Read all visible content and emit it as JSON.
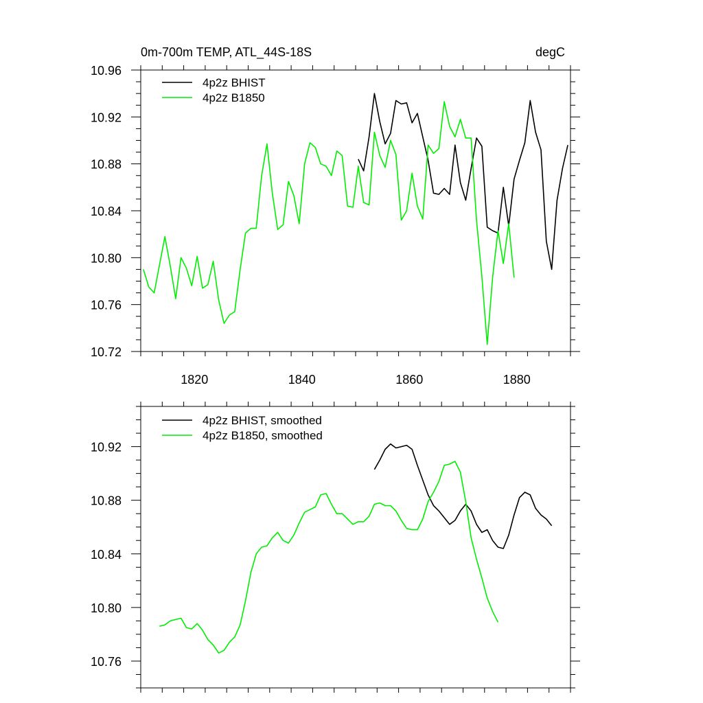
{
  "colors": {
    "bhist": "#000000",
    "b1850": "#00ee00",
    "axis": "#000000"
  },
  "chart_data": [
    {
      "type": "line",
      "title": "0m-700m TEMP, ATL_44S-18S",
      "units": "degC",
      "xlim": [
        1810,
        1890
      ],
      "ylim": [
        10.72,
        10.96
      ],
      "xticks": [
        1820,
        1840,
        1860,
        1880
      ],
      "xtick_labels": [
        "1820",
        "1840",
        "1860",
        "1880"
      ],
      "yticks": [
        10.72,
        10.76,
        10.8,
        10.84,
        10.88,
        10.92,
        10.96
      ],
      "ytick_labels": [
        "10.72",
        "10.76",
        "10.80",
        "10.84",
        "10.88",
        "10.92",
        "10.96"
      ],
      "grid": false,
      "legend_position": "top-left",
      "series": [
        {
          "name": "4p2z BHIST",
          "color_key": "bhist",
          "x": [
            1850.5,
            1851.5,
            1852.5,
            1853.5,
            1854.5,
            1855.5,
            1856.5,
            1857.5,
            1858.5,
            1859.5,
            1860.5,
            1861.5,
            1862.5,
            1863.5,
            1864.5,
            1865.5,
            1866.5,
            1867.5,
            1868.5,
            1869.5,
            1870.5,
            1871.5,
            1872.5,
            1873.5,
            1874.5,
            1875.5,
            1876.5,
            1877.5,
            1878.5,
            1879.5,
            1880.5,
            1881.5,
            1882.5,
            1883.5,
            1884.5,
            1885.5,
            1886.5,
            1887.5,
            1888.5,
            1889.5
          ],
          "y": [
            10.884,
            10.874,
            10.903,
            10.94,
            10.916,
            10.897,
            10.906,
            10.934,
            10.931,
            10.932,
            10.915,
            10.923,
            10.903,
            10.883,
            10.855,
            10.854,
            10.859,
            10.854,
            10.896,
            10.864,
            10.849,
            10.876,
            10.902,
            10.895,
            10.826,
            10.823,
            10.821,
            10.86,
            10.827,
            10.867,
            10.883,
            10.898,
            10.934,
            10.907,
            10.892,
            10.814,
            10.79,
            10.849,
            10.876,
            10.896
          ]
        },
        {
          "name": "4p2z B1850",
          "color_key": "b1850",
          "x": [
            1810.5,
            1811.5,
            1812.5,
            1813.5,
            1814.5,
            1815.5,
            1816.5,
            1817.5,
            1818.5,
            1819.5,
            1820.5,
            1821.5,
            1822.5,
            1823.5,
            1824.5,
            1825.5,
            1826.5,
            1827.5,
            1828.5,
            1829.5,
            1830.5,
            1831.5,
            1832.5,
            1833.5,
            1834.5,
            1835.5,
            1836.5,
            1837.5,
            1838.5,
            1839.5,
            1840.5,
            1841.5,
            1842.5,
            1843.5,
            1844.5,
            1845.5,
            1846.5,
            1847.5,
            1848.5,
            1849.5,
            1850.5,
            1851.5,
            1852.5,
            1853.5,
            1854.5,
            1855.5,
            1856.5,
            1857.5,
            1858.5,
            1859.5,
            1860.5,
            1861.5,
            1862.5,
            1863.5,
            1864.5,
            1865.5,
            1866.5,
            1867.5,
            1868.5,
            1869.5,
            1870.5,
            1871.5,
            1872.5,
            1873.5,
            1874.5,
            1875.5,
            1876.5,
            1877.5,
            1878.5,
            1879.5
          ],
          "y": [
            10.79,
            10.775,
            10.77,
            10.794,
            10.818,
            10.793,
            10.765,
            10.8,
            10.791,
            10.776,
            10.801,
            10.774,
            10.777,
            10.797,
            10.764,
            10.744,
            10.751,
            10.754,
            10.79,
            10.821,
            10.825,
            10.825,
            10.87,
            10.897,
            10.855,
            10.824,
            10.828,
            10.865,
            10.853,
            10.829,
            10.88,
            10.898,
            10.894,
            10.88,
            10.878,
            10.87,
            10.891,
            10.887,
            10.844,
            10.843,
            10.878,
            10.847,
            10.845,
            10.907,
            10.887,
            10.877,
            10.9,
            10.888,
            10.832,
            10.84,
            10.872,
            10.844,
            10.833,
            10.896,
            10.889,
            10.893,
            10.933,
            10.912,
            10.903,
            10.918,
            10.902,
            10.902,
            10.832,
            10.784,
            10.726,
            10.783,
            10.823,
            10.795,
            10.829,
            10.783
          ]
        }
      ]
    },
    {
      "type": "line",
      "xlim": [
        1810,
        1890
      ],
      "ylim": [
        10.74,
        10.95
      ],
      "xticks": [
        1820,
        1840,
        1860,
        1880
      ],
      "yticks": [
        10.76,
        10.8,
        10.84,
        10.88,
        10.92
      ],
      "ytick_labels": [
        "10.76",
        "10.80",
        "10.84",
        "10.88",
        "10.92"
      ],
      "grid": false,
      "legend_position": "top-left",
      "series": [
        {
          "name": "4p2z BHIST, smoothed",
          "color_key": "bhist",
          "x": [
            1853.5,
            1854.5,
            1855.5,
            1856.5,
            1857.5,
            1858.5,
            1859.5,
            1860.5,
            1861.5,
            1862.5,
            1863.5,
            1864.5,
            1865.5,
            1866.5,
            1867.5,
            1868.5,
            1869.5,
            1870.5,
            1871.5,
            1872.5,
            1873.5,
            1874.5,
            1875.5,
            1876.5,
            1877.5,
            1878.5,
            1879.5,
            1880.5,
            1881.5,
            1882.5,
            1883.5,
            1884.5,
            1885.5,
            1886.5
          ],
          "y": [
            10.903,
            10.91,
            10.918,
            10.922,
            10.919,
            10.92,
            10.921,
            10.918,
            10.906,
            10.895,
            10.884,
            10.876,
            10.872,
            10.867,
            10.862,
            10.865,
            10.872,
            10.877,
            10.872,
            10.862,
            10.856,
            10.858,
            10.85,
            10.845,
            10.844,
            10.854,
            10.869,
            10.882,
            10.886,
            10.884,
            10.874,
            10.869,
            10.866,
            10.861
          ]
        },
        {
          "name": "4p2z B1850, smoothed",
          "color_key": "b1850",
          "x": [
            1813.5,
            1814.5,
            1815.5,
            1816.5,
            1817.5,
            1818.5,
            1819.5,
            1820.5,
            1821.5,
            1822.5,
            1823.5,
            1824.5,
            1825.5,
            1826.5,
            1827.5,
            1828.5,
            1829.5,
            1830.5,
            1831.5,
            1832.5,
            1833.5,
            1834.5,
            1835.5,
            1836.5,
            1837.5,
            1838.5,
            1839.5,
            1840.5,
            1841.5,
            1842.5,
            1843.5,
            1844.5,
            1845.5,
            1846.5,
            1847.5,
            1848.5,
            1849.5,
            1850.5,
            1851.5,
            1852.5,
            1853.5,
            1854.5,
            1855.5,
            1856.5,
            1857.5,
            1858.5,
            1859.5,
            1860.5,
            1861.5,
            1862.5,
            1863.5,
            1864.5,
            1865.5,
            1866.5,
            1867.5,
            1868.5,
            1869.5,
            1870.5,
            1871.5,
            1872.5,
            1873.5,
            1874.5,
            1875.5,
            1876.5
          ],
          "y": [
            10.786,
            10.787,
            10.79,
            10.791,
            10.792,
            10.785,
            10.784,
            10.788,
            10.783,
            10.776,
            10.772,
            10.766,
            10.768,
            10.774,
            10.778,
            10.787,
            10.805,
            10.826,
            10.84,
            10.845,
            10.846,
            10.852,
            10.856,
            10.85,
            10.848,
            10.854,
            10.863,
            10.871,
            10.873,
            10.875,
            10.884,
            10.885,
            10.877,
            10.87,
            10.87,
            10.866,
            10.862,
            10.864,
            10.864,
            10.868,
            10.877,
            10.878,
            10.876,
            10.876,
            10.872,
            10.865,
            10.859,
            10.858,
            10.858,
            10.866,
            10.879,
            10.886,
            10.894,
            10.906,
            10.907,
            10.909,
            10.901,
            10.879,
            10.852,
            10.836,
            10.822,
            10.807,
            10.797,
            10.789
          ]
        }
      ]
    }
  ]
}
